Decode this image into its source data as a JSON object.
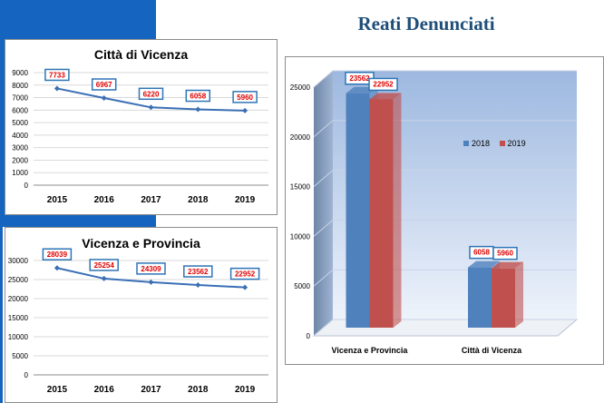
{
  "slide_title": "Reati Denunciati",
  "chart_data": [
    {
      "type": "line",
      "title": "Città di Vicenza",
      "categories": [
        "2015",
        "2016",
        "2017",
        "2018",
        "2019"
      ],
      "values": [
        7733,
        6967,
        6220,
        6058,
        5960
      ],
      "ylim": [
        0,
        9000
      ],
      "yticks": [
        0,
        1000,
        2000,
        3000,
        4000,
        5000,
        6000,
        7000,
        8000,
        9000
      ],
      "grid": true,
      "color": "#3a6fb5"
    },
    {
      "type": "line",
      "title": "Vicenza e Provincia",
      "categories": [
        "2015",
        "2016",
        "2017",
        "2018",
        "2019"
      ],
      "values": [
        28039,
        25254,
        24309,
        23562,
        22952
      ],
      "ylim": [
        0,
        30000
      ],
      "yticks": [
        0,
        5000,
        10000,
        15000,
        20000,
        25000,
        30000
      ],
      "grid": true,
      "color": "#3a6fb5"
    },
    {
      "type": "bar",
      "title": "",
      "categories": [
        "Vicenza e Provincia",
        "Città di Vicenza"
      ],
      "series": [
        {
          "name": "2018",
          "values": [
            23562,
            6058
          ],
          "color": "#4f81bd"
        },
        {
          "name": "2019",
          "values": [
            22952,
            5960
          ],
          "color": "#c0504d"
        }
      ],
      "ylim": [
        0,
        25000
      ],
      "yticks": [
        0,
        5000,
        10000,
        15000,
        20000,
        25000
      ],
      "grid": true,
      "legend": "right"
    }
  ]
}
